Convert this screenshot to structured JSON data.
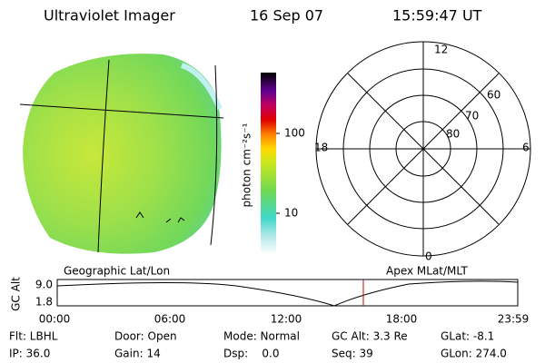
{
  "header": {
    "instrument": "Ultraviolet Imager",
    "date": "16 Sep 07",
    "time": "15:59:47 UT"
  },
  "colorbar": {
    "label": "photon cm⁻²s⁻¹",
    "ticks": [
      "100",
      "10"
    ]
  },
  "polar": {
    "mlt_labels": [
      "12",
      "18",
      "6",
      "0"
    ],
    "lat_labels": [
      "60",
      "70",
      "80"
    ]
  },
  "orbit": {
    "left_title": "Geographic Lat/Lon",
    "right_title": "Apex MLat/MLT",
    "axis_label": "GC Alt",
    "yticks": [
      "9.0",
      "1.8"
    ],
    "xticks": [
      "00:00",
      "06:00",
      "12:00",
      "18:00",
      "23:59"
    ]
  },
  "status": {
    "rows": [
      [
        "Flt: LBHL",
        "Door: Open",
        "Mode: Normal",
        "GC Alt: 3.3 Re",
        "GLat: -8.1"
      ],
      [
        "IP: 36.0",
        "Gain: 14",
        "Dsp:    0.0",
        "Seq: 39",
        "GLon: 274.0"
      ]
    ]
  }
}
